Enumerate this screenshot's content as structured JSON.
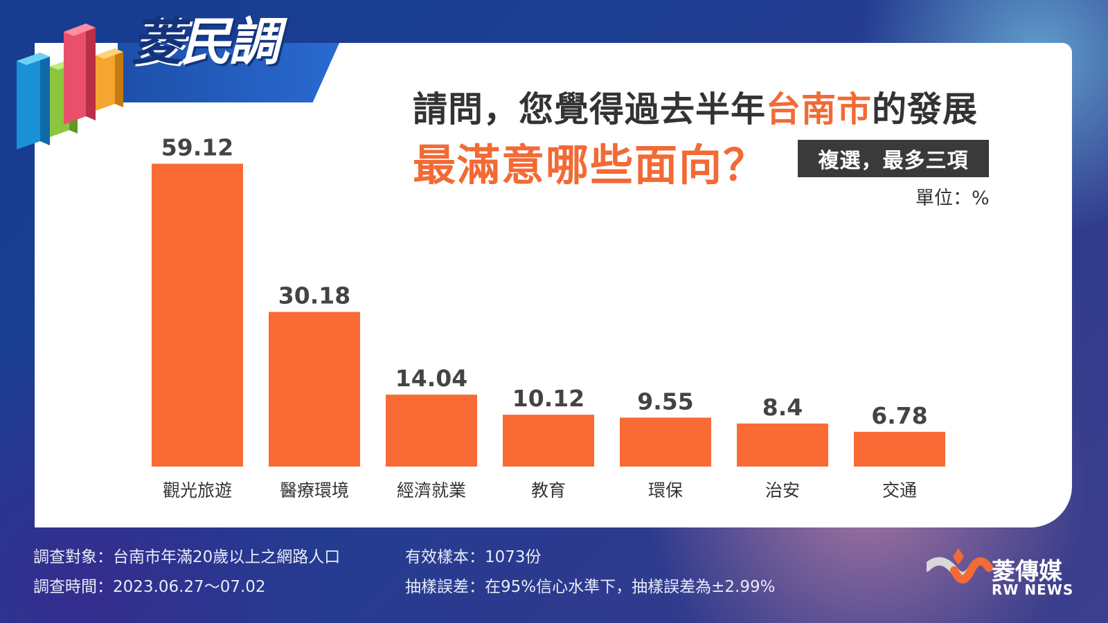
{
  "brand": {
    "logo_part1": "菱",
    "logo_part2": "民調"
  },
  "title": {
    "line1_prefix": "請問，您覺得過去半年",
    "line1_highlight": "台南市",
    "line1_suffix": "的發展",
    "line2": "最滿意哪些面向？"
  },
  "badge": "複選，最多三項",
  "unit_label": "單位：%",
  "colors": {
    "accent": "#f26a35",
    "bar": "#f96a35",
    "text": "#333333",
    "badge_bg": "#3a3a3a"
  },
  "chart_data": {
    "type": "bar",
    "categories": [
      "觀光旅遊",
      "醫療環境",
      "經濟就業",
      "教育",
      "環保",
      "治安",
      "交通"
    ],
    "values": [
      59.12,
      30.18,
      14.04,
      10.12,
      9.55,
      8.4,
      6.78
    ],
    "value_labels": [
      "59.12",
      "30.18",
      "14.04",
      "10.12",
      "9.55",
      "8.4",
      "6.78"
    ],
    "ylabel": "",
    "xlabel": "",
    "ylim": [
      0,
      60
    ],
    "grid": false
  },
  "footer": {
    "subject": "調查對象：台南市年滿20歲以上之網路人口",
    "period": "調查時間：2023.06.27～07.02",
    "sample": "有效樣本：1073份",
    "error": "抽樣誤差：在95%信心水準下，抽樣誤差為±2.99%"
  },
  "publisher": {
    "name": "菱傳媒",
    "sub": "RW NEWS"
  }
}
